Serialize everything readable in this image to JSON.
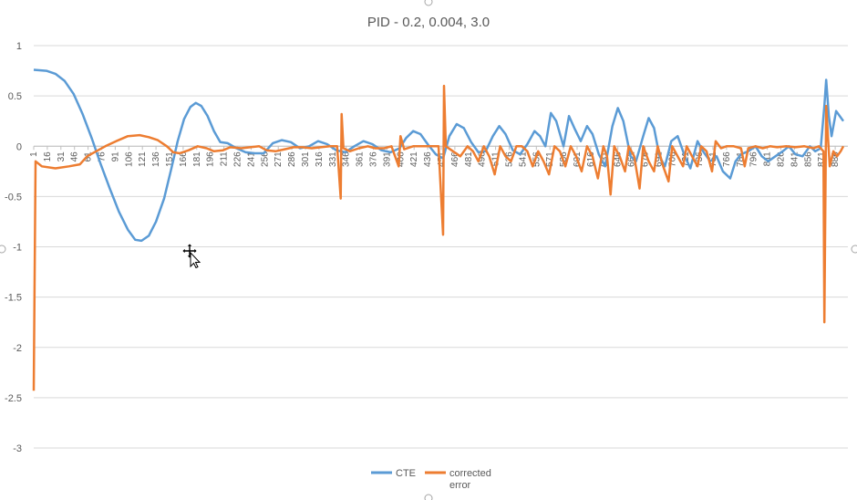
{
  "chart_data": {
    "type": "line",
    "title": "PID -  0.2, 0.004, 3.0",
    "xlabel": "",
    "ylabel": "",
    "ylim": [
      -3,
      1
    ],
    "yticks": [
      1,
      0.5,
      0,
      -0.5,
      -1,
      -1.5,
      -2,
      -2.5,
      -3
    ],
    "xlim": [
      1,
      900
    ],
    "xticks": [
      1,
      16,
      31,
      46,
      61,
      76,
      91,
      106,
      121,
      136,
      151,
      166,
      181,
      196,
      211,
      226,
      241,
      256,
      271,
      286,
      301,
      316,
      331,
      346,
      361,
      376,
      391,
      406,
      421,
      436,
      451,
      466,
      481,
      496,
      511,
      526,
      541,
      556,
      571,
      586,
      601,
      616,
      631,
      646,
      661,
      676,
      691,
      706,
      721,
      736,
      751,
      766,
      781,
      796,
      811,
      826,
      841,
      856,
      871,
      886
    ],
    "grid": "horizontal",
    "legend": "bottom",
    "series": [
      {
        "name": "CTE",
        "color": "#5b9bd5",
        "points": [
          [
            1,
            0.76
          ],
          [
            15,
            0.75
          ],
          [
            25,
            0.72
          ],
          [
            35,
            0.65
          ],
          [
            45,
            0.52
          ],
          [
            55,
            0.32
          ],
          [
            65,
            0.08
          ],
          [
            75,
            -0.18
          ],
          [
            85,
            -0.42
          ],
          [
            95,
            -0.65
          ],
          [
            105,
            -0.83
          ],
          [
            113,
            -0.93
          ],
          [
            120,
            -0.94
          ],
          [
            128,
            -0.89
          ],
          [
            136,
            -0.75
          ],
          [
            145,
            -0.52
          ],
          [
            153,
            -0.22
          ],
          [
            160,
            0.05
          ],
          [
            167,
            0.27
          ],
          [
            174,
            0.39
          ],
          [
            180,
            0.43
          ],
          [
            186,
            0.4
          ],
          [
            193,
            0.3
          ],
          [
            200,
            0.15
          ],
          [
            207,
            0.04
          ],
          [
            215,
            0.03
          ],
          [
            225,
            -0.02
          ],
          [
            235,
            -0.06
          ],
          [
            245,
            -0.07
          ],
          [
            255,
            -0.07
          ],
          [
            265,
            0.03
          ],
          [
            275,
            0.06
          ],
          [
            285,
            0.04
          ],
          [
            295,
            -0.02
          ],
          [
            305,
            0.0
          ],
          [
            315,
            0.05
          ],
          [
            325,
            0.02
          ],
          [
            335,
            -0.04
          ],
          [
            345,
            -0.06
          ],
          [
            355,
            0.0
          ],
          [
            365,
            0.05
          ],
          [
            375,
            0.02
          ],
          [
            385,
            -0.04
          ],
          [
            395,
            -0.06
          ],
          [
            405,
            -0.02
          ],
          [
            412,
            0.08
          ],
          [
            420,
            0.15
          ],
          [
            428,
            0.12
          ],
          [
            436,
            0.02
          ],
          [
            445,
            -0.08
          ],
          [
            453,
            -0.12
          ],
          [
            460,
            0.1
          ],
          [
            468,
            0.22
          ],
          [
            476,
            0.18
          ],
          [
            484,
            0.04
          ],
          [
            492,
            -0.06
          ],
          [
            500,
            -0.05
          ],
          [
            508,
            0.1
          ],
          [
            515,
            0.2
          ],
          [
            522,
            0.12
          ],
          [
            530,
            -0.04
          ],
          [
            538,
            -0.08
          ],
          [
            546,
            0.02
          ],
          [
            554,
            0.15
          ],
          [
            560,
            0.1
          ],
          [
            566,
            0.0
          ],
          [
            572,
            0.33
          ],
          [
            578,
            0.25
          ],
          [
            586,
            0.0
          ],
          [
            592,
            0.3
          ],
          [
            598,
            0.18
          ],
          [
            605,
            0.05
          ],
          [
            612,
            0.2
          ],
          [
            618,
            0.12
          ],
          [
            625,
            -0.08
          ],
          [
            632,
            -0.2
          ],
          [
            640,
            0.2
          ],
          [
            646,
            0.38
          ],
          [
            652,
            0.25
          ],
          [
            660,
            -0.1
          ],
          [
            666,
            -0.15
          ],
          [
            674,
            0.1
          ],
          [
            680,
            0.28
          ],
          [
            686,
            0.18
          ],
          [
            692,
            -0.1
          ],
          [
            698,
            -0.2
          ],
          [
            705,
            0.05
          ],
          [
            712,
            0.1
          ],
          [
            720,
            -0.1
          ],
          [
            726,
            -0.22
          ],
          [
            734,
            0.05
          ],
          [
            740,
            -0.05
          ],
          [
            748,
            -0.15
          ],
          [
            755,
            -0.1
          ],
          [
            762,
            -0.25
          ],
          [
            770,
            -0.32
          ],
          [
            776,
            -0.15
          ],
          [
            782,
            -0.08
          ],
          [
            790,
            -0.05
          ],
          [
            798,
            0.0
          ],
          [
            805,
            -0.1
          ],
          [
            812,
            -0.15
          ],
          [
            820,
            -0.1
          ],
          [
            828,
            -0.05
          ],
          [
            835,
            0.0
          ],
          [
            842,
            -0.08
          ],
          [
            850,
            -0.1
          ],
          [
            858,
            0.0
          ],
          [
            864,
            -0.05
          ],
          [
            870,
            -0.02
          ],
          [
            874,
            0.4
          ],
          [
            876,
            0.66
          ],
          [
            879,
            0.3
          ],
          [
            882,
            0.1
          ],
          [
            887,
            0.35
          ],
          [
            895,
            0.25
          ]
        ]
      },
      {
        "name": "corrected error",
        "color": "#ed7d31",
        "points": [
          [
            1,
            -2.43
          ],
          [
            3,
            -0.15
          ],
          [
            10,
            -0.2
          ],
          [
            25,
            -0.22
          ],
          [
            40,
            -0.2
          ],
          [
            52,
            -0.18
          ],
          [
            60,
            -0.1
          ],
          [
            70,
            -0.05
          ],
          [
            80,
            0.0
          ],
          [
            92,
            0.05
          ],
          [
            105,
            0.1
          ],
          [
            118,
            0.11
          ],
          [
            128,
            0.09
          ],
          [
            138,
            0.06
          ],
          [
            148,
            0.0
          ],
          [
            155,
            -0.06
          ],
          [
            162,
            -0.07
          ],
          [
            172,
            -0.04
          ],
          [
            182,
            0.0
          ],
          [
            192,
            -0.02
          ],
          [
            200,
            -0.05
          ],
          [
            210,
            -0.04
          ],
          [
            218,
            -0.01
          ],
          [
            230,
            -0.02
          ],
          [
            240,
            -0.01
          ],
          [
            250,
            0.0
          ],
          [
            258,
            -0.04
          ],
          [
            268,
            -0.05
          ],
          [
            278,
            -0.03
          ],
          [
            288,
            -0.01
          ],
          [
            298,
            -0.01
          ],
          [
            308,
            -0.02
          ],
          [
            318,
            -0.01
          ],
          [
            328,
            0.0
          ],
          [
            336,
            0.0
          ],
          [
            340,
            -0.52
          ],
          [
            341,
            0.32
          ],
          [
            343,
            -0.02
          ],
          [
            350,
            -0.05
          ],
          [
            360,
            -0.02
          ],
          [
            370,
            0.0
          ],
          [
            378,
            -0.02
          ],
          [
            388,
            -0.02
          ],
          [
            396,
            0.0
          ],
          [
            404,
            -0.2
          ],
          [
            406,
            0.1
          ],
          [
            410,
            -0.03
          ],
          [
            420,
            0.0
          ],
          [
            430,
            0.0
          ],
          [
            440,
            0.0
          ],
          [
            448,
            0.0
          ],
          [
            453,
            -0.88
          ],
          [
            454,
            0.6
          ],
          [
            456,
            0.0
          ],
          [
            464,
            -0.05
          ],
          [
            472,
            -0.1
          ],
          [
            480,
            0.0
          ],
          [
            486,
            -0.05
          ],
          [
            492,
            -0.15
          ],
          [
            498,
            0.0
          ],
          [
            504,
            -0.1
          ],
          [
            510,
            -0.28
          ],
          [
            516,
            0.0
          ],
          [
            522,
            -0.1
          ],
          [
            528,
            -0.15
          ],
          [
            534,
            0.0
          ],
          [
            540,
            0.0
          ],
          [
            546,
            -0.05
          ],
          [
            552,
            -0.2
          ],
          [
            558,
            -0.05
          ],
          [
            564,
            -0.15
          ],
          [
            570,
            -0.28
          ],
          [
            576,
            0.0
          ],
          [
            582,
            -0.05
          ],
          [
            588,
            -0.2
          ],
          [
            594,
            0.0
          ],
          [
            600,
            -0.1
          ],
          [
            606,
            -0.25
          ],
          [
            612,
            0.0
          ],
          [
            618,
            -0.1
          ],
          [
            624,
            -0.32
          ],
          [
            630,
            0.0
          ],
          [
            634,
            -0.1
          ],
          [
            638,
            -0.48
          ],
          [
            642,
            0.0
          ],
          [
            648,
            -0.1
          ],
          [
            654,
            -0.25
          ],
          [
            658,
            0.0
          ],
          [
            664,
            -0.1
          ],
          [
            670,
            -0.42
          ],
          [
            674,
            0.0
          ],
          [
            680,
            -0.15
          ],
          [
            686,
            -0.25
          ],
          [
            690,
            0.0
          ],
          [
            696,
            -0.2
          ],
          [
            702,
            -0.35
          ],
          [
            706,
            0.0
          ],
          [
            712,
            -0.1
          ],
          [
            718,
            -0.2
          ],
          [
            722,
            0.0
          ],
          [
            728,
            -0.1
          ],
          [
            734,
            -0.2
          ],
          [
            738,
            0.0
          ],
          [
            744,
            -0.05
          ],
          [
            750,
            -0.25
          ],
          [
            754,
            0.05
          ],
          [
            760,
            -0.02
          ],
          [
            766,
            0.0
          ],
          [
            774,
            0.0
          ],
          [
            782,
            -0.02
          ],
          [
            786,
            -0.2
          ],
          [
            790,
            -0.02
          ],
          [
            798,
            0.0
          ],
          [
            806,
            -0.02
          ],
          [
            814,
            0.0
          ],
          [
            822,
            -0.01
          ],
          [
            832,
            0.0
          ],
          [
            842,
            -0.01
          ],
          [
            852,
            0.0
          ],
          [
            862,
            -0.02
          ],
          [
            868,
            0.0
          ],
          [
            873,
            -0.05
          ],
          [
            874,
            -1.75
          ],
          [
            876,
            0.4
          ],
          [
            878,
            0.1
          ],
          [
            880,
            -0.2
          ],
          [
            884,
            -0.05
          ],
          [
            888,
            -0.1
          ],
          [
            892,
            -0.05
          ],
          [
            895,
            0.0
          ]
        ]
      }
    ]
  }
}
